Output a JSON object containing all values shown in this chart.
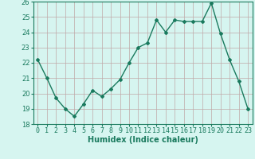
{
  "x": [
    0,
    1,
    2,
    3,
    4,
    5,
    6,
    7,
    8,
    9,
    10,
    11,
    12,
    13,
    14,
    15,
    16,
    17,
    18,
    19,
    20,
    21,
    22,
    23
  ],
  "y": [
    22.2,
    21.0,
    19.7,
    19.0,
    18.5,
    19.3,
    20.2,
    19.8,
    20.3,
    20.9,
    22.0,
    23.0,
    23.3,
    24.8,
    24.0,
    24.8,
    24.7,
    24.7,
    24.7,
    25.9,
    23.9,
    22.2,
    20.8,
    19.0
  ],
  "line_color": "#1a7a5e",
  "marker": "D",
  "marker_size": 2.0,
  "bg_color": "#d6f5f0",
  "grid_color": "#c0a8a8",
  "xlabel": "Humidex (Indice chaleur)",
  "ylim": [
    18,
    26
  ],
  "xlim": [
    -0.5,
    23.5
  ],
  "yticks": [
    18,
    19,
    20,
    21,
    22,
    23,
    24,
    25,
    26
  ],
  "xticks": [
    0,
    1,
    2,
    3,
    4,
    5,
    6,
    7,
    8,
    9,
    10,
    11,
    12,
    13,
    14,
    15,
    16,
    17,
    18,
    19,
    20,
    21,
    22,
    23
  ],
  "xlabel_fontsize": 7.0,
  "tick_fontsize": 6.0,
  "linewidth": 1.0
}
